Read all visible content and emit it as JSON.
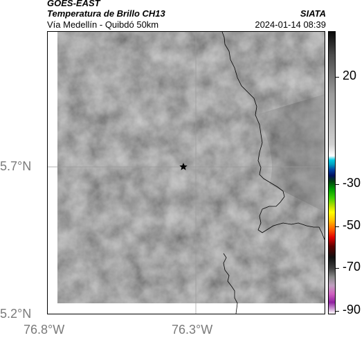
{
  "header": {
    "satellite": "GOES-EAST",
    "product": "Temperatura de Brillo CH13",
    "region": "Vía Medellín - Quibdó 50km",
    "org": "SIATA",
    "datetime": "2024-01-14 08:39"
  },
  "map": {
    "lat_ticks": [
      "5.7°N",
      "5.2°N"
    ],
    "lon_ticks": [
      "76.8°W",
      "76.3°W"
    ],
    "marker": "star",
    "colors": {
      "cloud_gray": "#6a6a6a",
      "boundary": "#000000",
      "grid": "#9a9a9a"
    }
  },
  "colorbar": {
    "labels": [
      "20",
      "-30",
      "-50",
      "-70",
      "-90"
    ]
  }
}
